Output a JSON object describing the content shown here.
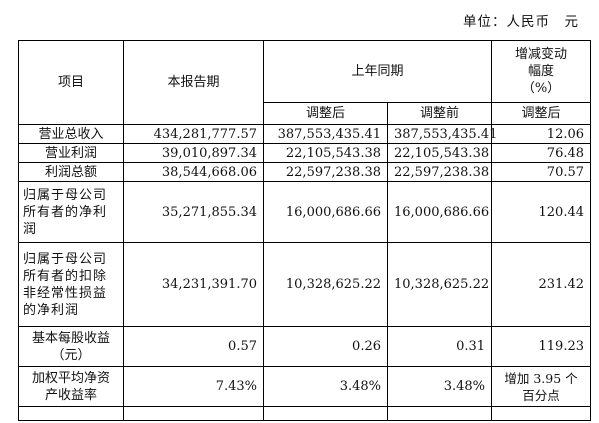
{
  "unit_label": "单位：人民币　元",
  "table": {
    "headers": {
      "item": "项目",
      "current": "本报告期",
      "prior_year": "上年同期",
      "change_lines": [
        "增减变动",
        "幅度",
        "（%）"
      ],
      "adjusted_after": "调整后",
      "adjusted_before": "调整前",
      "change_adjusted": "调整后"
    },
    "rows": [
      {
        "label": "营业总收入",
        "current": "434,281,777.57",
        "after": "387,553,435.41",
        "before": "387,553,435.41",
        "change": "12.06"
      },
      {
        "label": "营业利润",
        "current": "39,010,897.34",
        "after": "22,105,543.38",
        "before": "22,105,543.38",
        "change": "76.48"
      },
      {
        "label": "利润总额",
        "current": "38,544,668.06",
        "after": "22,597,238.38",
        "before": "22,597,238.38",
        "change": "70.57"
      },
      {
        "label_lines": [
          "归属于母公司",
          "所有者的净利",
          "润"
        ],
        "current": "35,271,855.34",
        "after": "16,000,686.66",
        "before": "16,000,686.66",
        "change": "120.44"
      },
      {
        "label_lines": [
          "归属于母公司",
          "所有者的扣除",
          "非经常性损益",
          "的净利润"
        ],
        "current": "34,231,391.70",
        "after": "10,328,625.22",
        "before": "10,328,625.22",
        "change": "231.42"
      },
      {
        "label_lines": [
          "基本每股收益",
          "（元）"
        ],
        "current": "0.57",
        "after": "0.26",
        "before": "0.31",
        "change": "119.23"
      },
      {
        "label_lines": [
          "加权平均净资",
          "产收益率"
        ],
        "current": "7.43%",
        "after": "3.48%",
        "before": "3.48%",
        "change_lines": [
          "增加 3.95 个",
          "百分点"
        ]
      }
    ]
  }
}
